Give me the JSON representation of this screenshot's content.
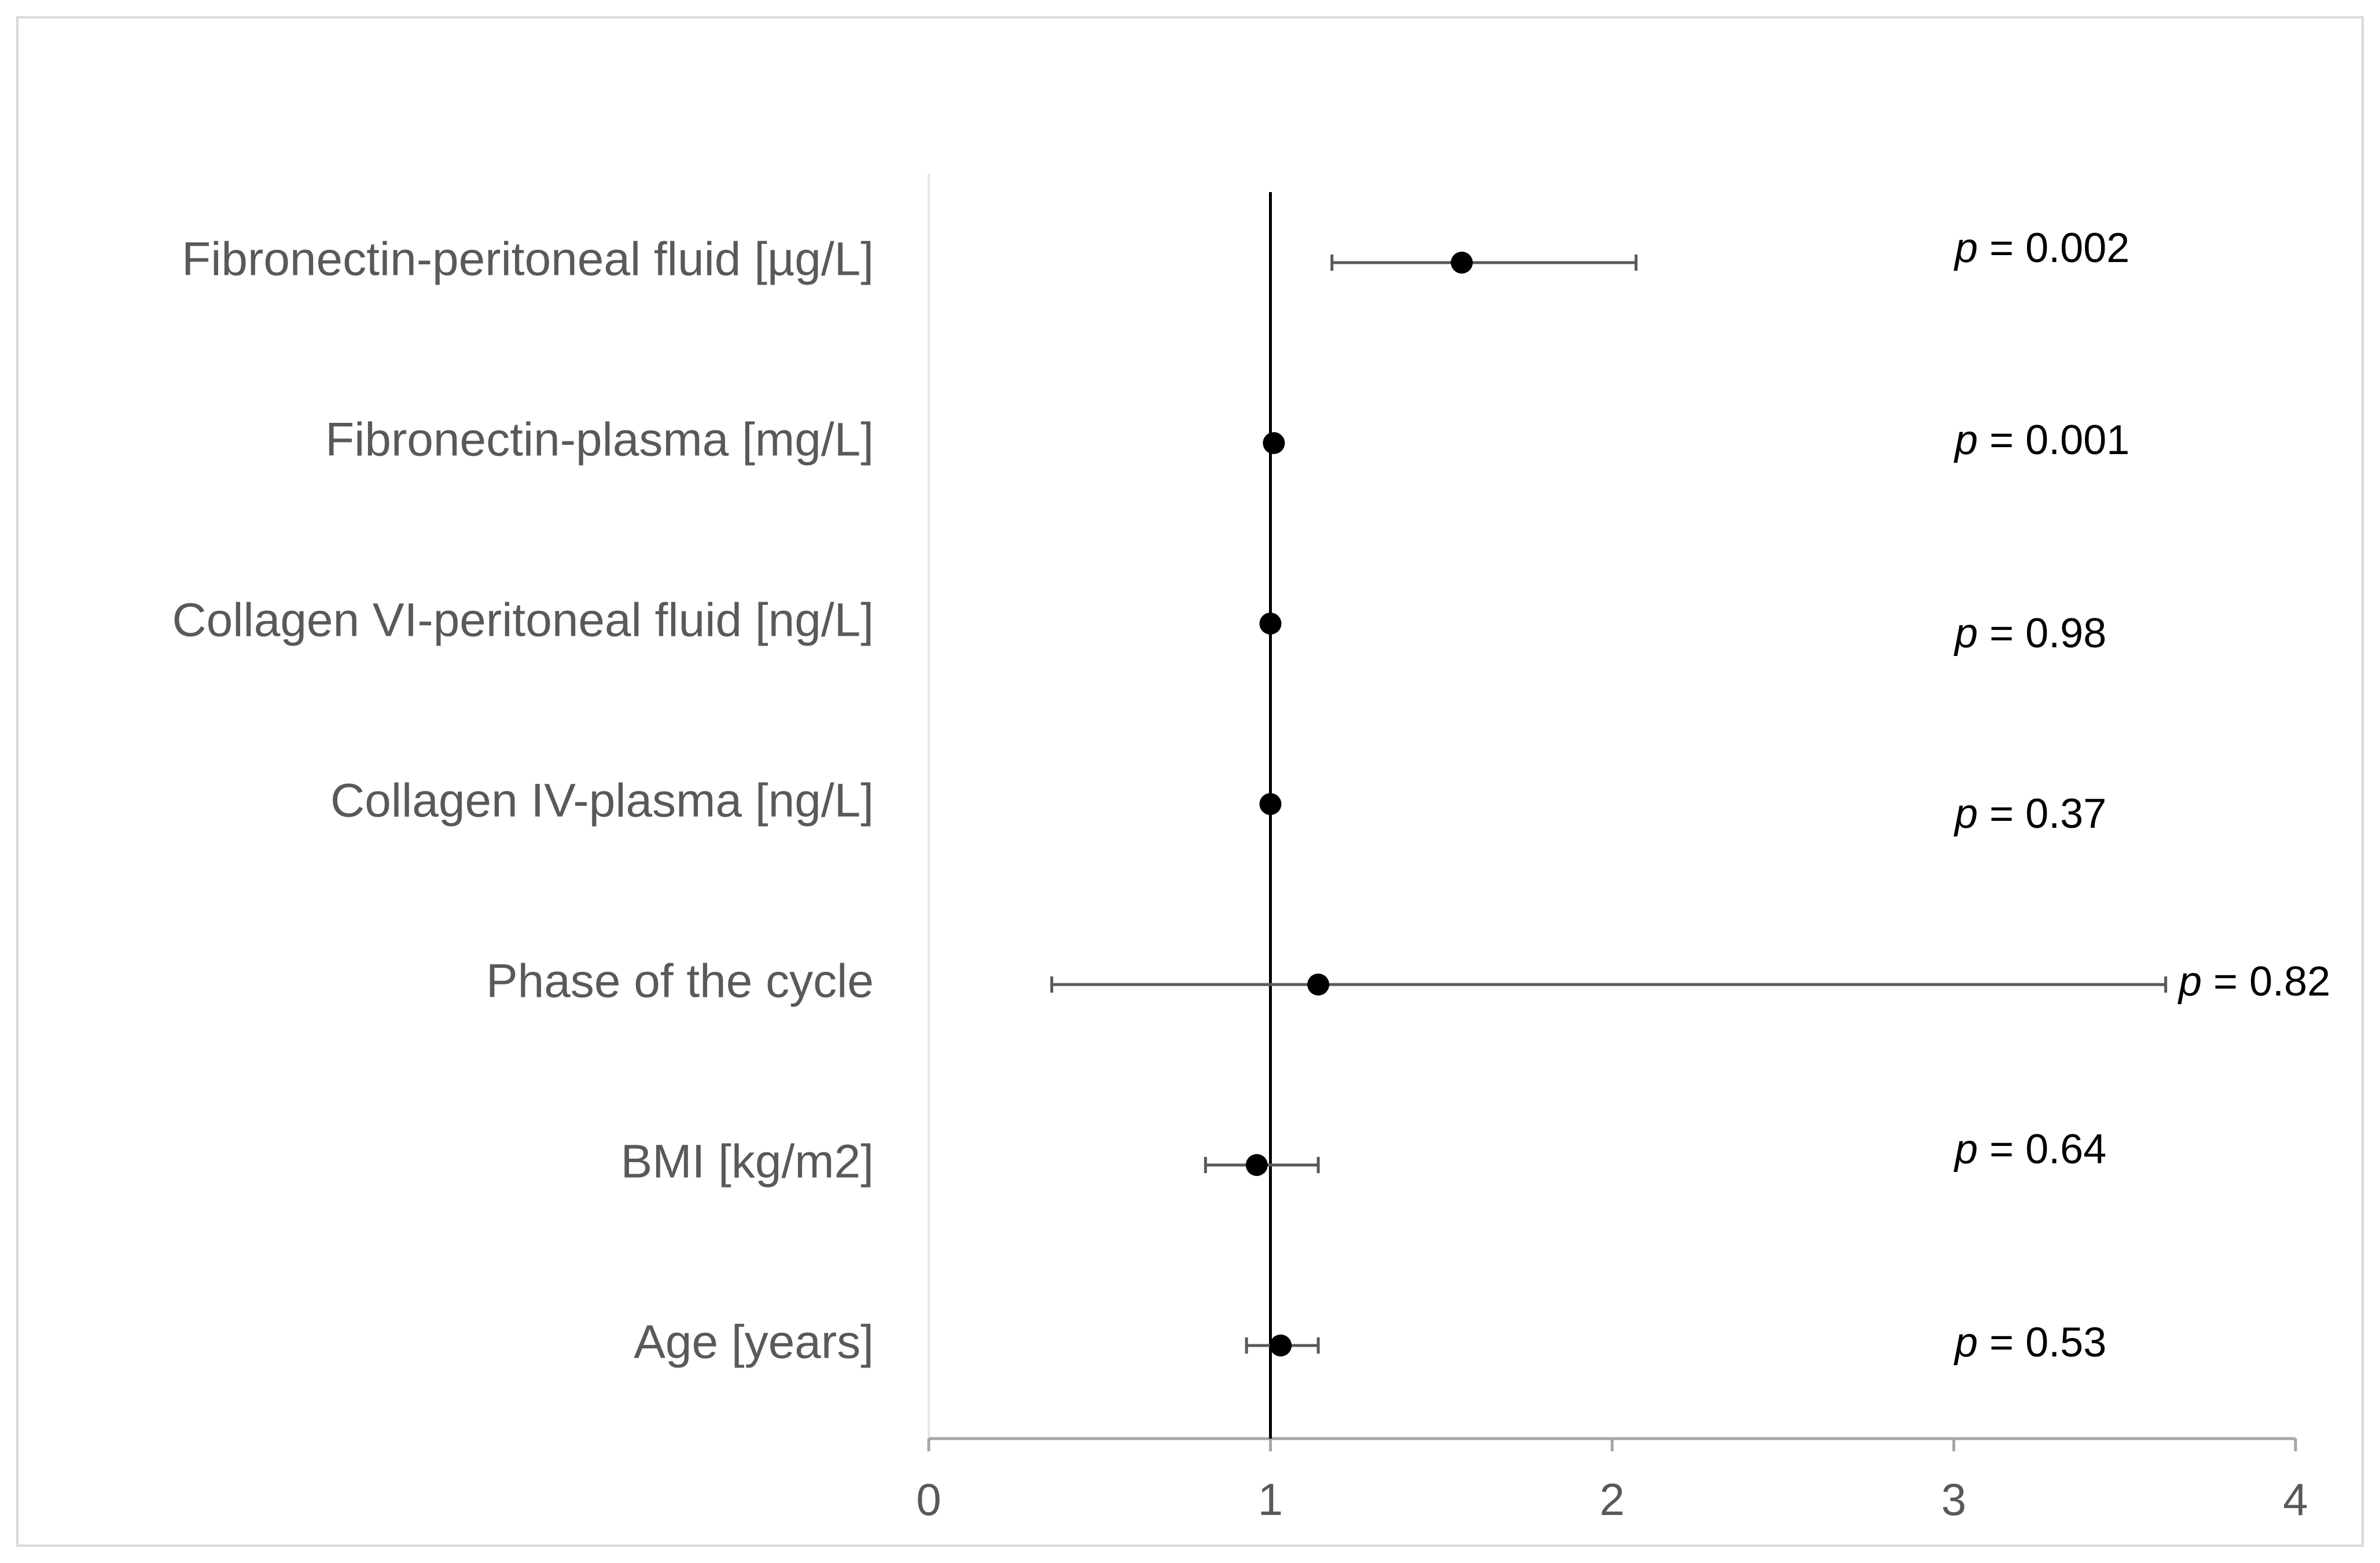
{
  "chart_data": {
    "type": "forest",
    "title": "",
    "xlabel": "",
    "ylabel": "",
    "xlim": [
      0,
      4
    ],
    "x_ticks": [
      0,
      1,
      2,
      3,
      4
    ],
    "reference_value": 1,
    "rows": [
      {
        "label": "Fibronectin-peritoneal fluid [µg/L]",
        "estimate": 1.56,
        "ci_low": 1.18,
        "ci_high": 2.07,
        "p_prefix": "p",
        "p_text": " = 0.002"
      },
      {
        "label": "Fibronectin-plasma [mg/L]",
        "estimate": 1.01,
        "ci_low": 1.0,
        "ci_high": 1.02,
        "p_prefix": "p",
        "p_text": " = 0.001"
      },
      {
        "label": "Collagen VI-peritoneal fluid [ng/L]",
        "estimate": 1.0,
        "ci_low": 0.99,
        "ci_high": 1.01,
        "p_prefix": "p",
        "p_text": " = 0.98"
      },
      {
        "label": "Collagen IV-plasma [ng/L]",
        "estimate": 1.0,
        "ci_low": 0.99,
        "ci_high": 1.01,
        "p_prefix": "p",
        "p_text": " = 0.37"
      },
      {
        "label": "Phase of the cycle",
        "estimate": 1.14,
        "ci_low": 0.36,
        "ci_high": 3.62,
        "p_prefix": "p",
        "p_text": " = 0.82"
      },
      {
        "label": "BMI [kg/m2]",
        "estimate": 0.96,
        "ci_low": 0.81,
        "ci_high": 1.14,
        "p_prefix": "p",
        "p_text": " = 0.64"
      },
      {
        "label": "Age [years]",
        "estimate": 1.03,
        "ci_low": 0.93,
        "ci_high": 1.14,
        "p_prefix": "p",
        "p_text": " = 0.53"
      }
    ]
  }
}
